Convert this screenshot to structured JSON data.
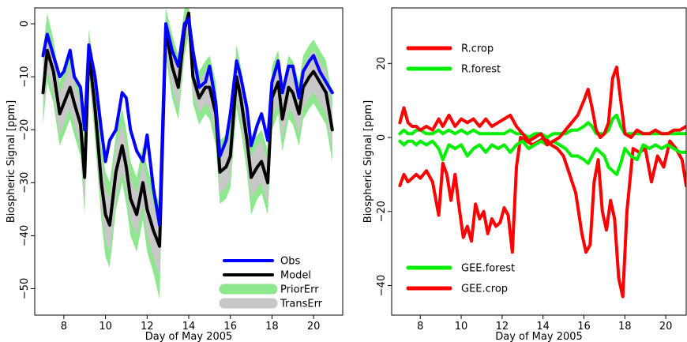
{
  "chart_data": [
    {
      "type": "line",
      "xlabel": "Day of May 2005",
      "ylabel": "Biospheric Signal [ppm]",
      "xlim": [
        6.6,
        21.4
      ],
      "ylim": [
        -55,
        3
      ],
      "xticks": [
        8,
        10,
        12,
        14,
        16,
        18,
        20
      ],
      "yticks": [
        0,
        -10,
        -20,
        -30,
        -40,
        -50
      ],
      "legend_position": "bottom-right",
      "series": [
        {
          "name": "Obs",
          "color": "#0000ff",
          "kind": "line",
          "x": [
            7.0,
            7.2,
            7.5,
            7.8,
            8.0,
            8.3,
            8.5,
            8.8,
            9.0,
            9.2,
            9.5,
            9.8,
            10.0,
            10.2,
            10.5,
            10.8,
            11.0,
            11.2,
            11.5,
            11.8,
            12.0,
            12.3,
            12.6,
            12.9,
            13.2,
            13.5,
            13.8,
            14.0,
            14.2,
            14.5,
            14.8,
            15.0,
            15.3,
            15.5,
            15.8,
            16.0,
            16.3,
            16.5,
            16.8,
            17.0,
            17.3,
            17.5,
            17.8,
            18.0,
            18.3,
            18.5,
            18.8,
            19.0,
            19.3,
            19.5,
            19.8,
            20.0,
            20.3,
            20.6,
            20.9
          ],
          "values": [
            -6,
            -2,
            -6,
            -10,
            -9,
            -5,
            -10,
            -12,
            -20,
            -4,
            -10,
            -20,
            -26,
            -22,
            -20,
            -13,
            -14,
            -20,
            -24,
            -26,
            -21,
            -31,
            -38,
            0,
            -5,
            -8,
            0,
            1,
            -5,
            -12,
            -11,
            -8,
            -15,
            -25,
            -22,
            -17,
            -7,
            -10,
            -16,
            -23,
            -19,
            -17,
            -22,
            -11,
            -7,
            -13,
            -8,
            -8,
            -14,
            -9,
            -7,
            -6,
            -9,
            -11,
            -13
          ]
        },
        {
          "name": "Model",
          "color": "#000000",
          "kind": "line",
          "x": [
            7.0,
            7.2,
            7.5,
            7.8,
            8.0,
            8.3,
            8.5,
            8.8,
            9.0,
            9.2,
            9.5,
            9.8,
            10.0,
            10.2,
            10.5,
            10.8,
            11.0,
            11.2,
            11.5,
            11.8,
            12.0,
            12.3,
            12.6,
            12.9,
            13.2,
            13.5,
            13.8,
            14.0,
            14.2,
            14.5,
            14.8,
            15.0,
            15.3,
            15.5,
            15.8,
            16.0,
            16.3,
            16.5,
            16.8,
            17.0,
            17.3,
            17.5,
            17.8,
            18.0,
            18.3,
            18.5,
            18.8,
            19.0,
            19.3,
            19.5,
            19.8,
            20.0,
            20.3,
            20.6,
            20.9
          ],
          "values": [
            -13,
            -5,
            -9,
            -17,
            -15,
            -12,
            -15,
            -19,
            -29,
            -5,
            -16,
            -30,
            -36,
            -38,
            -28,
            -23,
            -27,
            -33,
            -36,
            -30,
            -35,
            -39,
            -42,
            -1,
            -8,
            -12,
            -1,
            2,
            -10,
            -14,
            -12,
            -12,
            -17,
            -28,
            -27,
            -25,
            -10,
            -14,
            -22,
            -29,
            -27,
            -26,
            -30,
            -14,
            -11,
            -18,
            -12,
            -13,
            -17,
            -12,
            -10,
            -9,
            -11,
            -13,
            -20
          ]
        },
        {
          "name": "PriorErr",
          "color": "#8de88d",
          "kind": "band",
          "x": [
            7.0,
            7.2,
            7.5,
            7.8,
            8.0,
            8.3,
            8.5,
            8.8,
            9.0,
            9.2,
            9.5,
            9.8,
            10.0,
            10.2,
            10.5,
            10.8,
            11.0,
            11.2,
            11.5,
            11.8,
            12.0,
            12.3,
            12.6,
            12.9,
            13.2,
            13.5,
            13.8,
            14.0,
            14.2,
            14.5,
            14.8,
            15.0,
            15.3,
            15.5,
            15.8,
            16.0,
            16.3,
            16.5,
            16.8,
            17.0,
            17.3,
            17.5,
            17.8,
            18.0,
            18.3,
            18.5,
            18.8,
            19.0,
            19.3,
            19.5,
            19.8,
            20.0,
            20.3,
            20.6,
            20.9
          ],
          "upper": [
            -5,
            2,
            -3,
            -11,
            -9,
            -6,
            -9,
            -13,
            -22,
            -1,
            -10,
            -23,
            -28,
            -30,
            -21,
            -16,
            -20,
            -26,
            -29,
            -23,
            -27,
            -31,
            -34,
            3,
            -2,
            -6,
            3,
            4,
            -5,
            -9,
            -7,
            -6,
            -11,
            -22,
            -21,
            -19,
            -4,
            -8,
            -16,
            -22,
            -21,
            -20,
            -24,
            -8,
            -5,
            -12,
            -6,
            -7,
            -11,
            -6,
            -4,
            -3,
            -5,
            -7,
            -14
          ],
          "lower": [
            -19,
            -11,
            -15,
            -23,
            -21,
            -18,
            -21,
            -25,
            -36,
            -9,
            -22,
            -37,
            -44,
            -46,
            -35,
            -30,
            -34,
            -40,
            -43,
            -37,
            -43,
            -47,
            -52,
            -6,
            -14,
            -18,
            -6,
            -2,
            -15,
            -19,
            -17,
            -18,
            -23,
            -34,
            -33,
            -31,
            -16,
            -20,
            -28,
            -36,
            -33,
            -32,
            -36,
            -20,
            -17,
            -24,
            -18,
            -19,
            -23,
            -18,
            -16,
            -15,
            -17,
            -19,
            -26
          ]
        },
        {
          "name": "TransErr",
          "color": "#c8c8c8",
          "kind": "band",
          "x": [
            7.0,
            7.2,
            7.5,
            7.8,
            8.0,
            8.3,
            8.5,
            8.8,
            9.0,
            9.2,
            9.5,
            9.8,
            10.0,
            10.2,
            10.5,
            10.8,
            11.0,
            11.2,
            11.5,
            11.8,
            12.0,
            12.3,
            12.6,
            12.9,
            13.2,
            13.5,
            13.8,
            14.0,
            14.2,
            14.5,
            14.8,
            15.0,
            15.3,
            15.5,
            15.8,
            16.0,
            16.3,
            16.5,
            16.8,
            17.0,
            17.3,
            17.5,
            17.8,
            18.0,
            18.3,
            18.5,
            18.8,
            19.0,
            19.3,
            19.5,
            19.8,
            20.0,
            20.3,
            20.6,
            20.9
          ],
          "upper": [
            -8,
            -1,
            -5,
            -13,
            -11,
            -8,
            -11,
            -15,
            -24,
            -2,
            -12,
            -25,
            -31,
            -33,
            -23,
            -19,
            -23,
            -29,
            -32,
            -26,
            -30,
            -34,
            -38,
            1,
            -4,
            -8,
            1,
            3,
            -7,
            -11,
            -9,
            -8,
            -13,
            -24,
            -23,
            -21,
            -6,
            -10,
            -18,
            -25,
            -23,
            -22,
            -26,
            -10,
            -7,
            -14,
            -8,
            -9,
            -13,
            -8,
            -6,
            -5,
            -7,
            -9,
            -16
          ],
          "lower": [
            -17,
            -9,
            -13,
            -21,
            -19,
            -16,
            -19,
            -23,
            -34,
            -8,
            -20,
            -35,
            -41,
            -43,
            -33,
            -28,
            -31,
            -37,
            -40,
            -34,
            -40,
            -44,
            -48,
            -4,
            -12,
            -16,
            -4,
            -1,
            -13,
            -17,
            -15,
            -16,
            -21,
            -32,
            -31,
            -29,
            -14,
            -18,
            -26,
            -33,
            -31,
            -30,
            -34,
            -18,
            -15,
            -22,
            -16,
            -17,
            -21,
            -16,
            -14,
            -13,
            -15,
            -17,
            -24
          ]
        }
      ]
    },
    {
      "type": "line",
      "xlabel": "Day of May 2005",
      "ylabel": "Biospheric Signal [ppm]",
      "xlim": [
        6.6,
        21.0
      ],
      "ylim": [
        -48,
        35
      ],
      "xticks": [
        8,
        10,
        12,
        14,
        16,
        18,
        20
      ],
      "yticks": [
        20,
        0,
        -20,
        -40
      ],
      "legend_position": "top-left and bottom-left",
      "series": [
        {
          "name": "R.crop",
          "color": "#ff0000",
          "legend_group": "top",
          "x": [
            7.0,
            7.2,
            7.4,
            7.6,
            7.8,
            8.0,
            8.3,
            8.6,
            8.9,
            9.1,
            9.4,
            9.7,
            10.0,
            10.3,
            10.6,
            10.9,
            11.2,
            11.5,
            11.8,
            12.1,
            12.4,
            12.7,
            13.0,
            13.3,
            13.6,
            13.9,
            14.2,
            14.5,
            14.8,
            15.1,
            15.4,
            15.7,
            16.0,
            16.2,
            16.4,
            16.6,
            16.8,
            17.0,
            17.2,
            17.4,
            17.6,
            17.8,
            18.0,
            18.3,
            18.6,
            18.9,
            19.2,
            19.5,
            19.8,
            20.1,
            20.4,
            20.7,
            21.0
          ],
          "values": [
            4,
            8,
            4,
            3,
            3,
            2,
            3,
            2,
            5,
            3,
            6,
            3,
            5,
            4,
            5,
            3,
            5,
            3,
            4,
            5,
            6,
            3,
            1,
            -1,
            0,
            1,
            -2,
            -1,
            0,
            2,
            4,
            6,
            10,
            13,
            8,
            2,
            0,
            1,
            4,
            16,
            19,
            10,
            1,
            0,
            2,
            1,
            1,
            2,
            1,
            1,
            2,
            2,
            3
          ]
        },
        {
          "name": "R.forest",
          "color": "#00ee00",
          "legend_group": "top",
          "x": [
            7.0,
            7.2,
            7.4,
            7.6,
            7.8,
            8.0,
            8.3,
            8.6,
            8.9,
            9.1,
            9.4,
            9.7,
            10.0,
            10.3,
            10.6,
            10.9,
            11.2,
            11.5,
            11.8,
            12.1,
            12.4,
            12.7,
            13.0,
            13.3,
            13.6,
            13.9,
            14.2,
            14.5,
            14.8,
            15.1,
            15.4,
            15.7,
            16.0,
            16.2,
            16.4,
            16.6,
            16.8,
            17.0,
            17.2,
            17.4,
            17.6,
            17.8,
            18.0,
            18.3,
            18.6,
            18.9,
            19.2,
            19.5,
            19.8,
            20.1,
            20.4,
            20.7,
            21.0
          ],
          "values": [
            1,
            2,
            1,
            1,
            2,
            2,
            1,
            1,
            2,
            1,
            2,
            1,
            2,
            1,
            2,
            1,
            1,
            1,
            1,
            1,
            2,
            1,
            1,
            0,
            1,
            1,
            0,
            1,
            1,
            1,
            2,
            2,
            3,
            4,
            3,
            1,
            1,
            1,
            2,
            5,
            6,
            3,
            1,
            1,
            1,
            1,
            1,
            1,
            1,
            1,
            1,
            1,
            1
          ]
        },
        {
          "name": "GEE.forest",
          "color": "#00ee00",
          "legend_group": "bottom",
          "x": [
            7.0,
            7.2,
            7.4,
            7.6,
            7.8,
            8.0,
            8.3,
            8.6,
            8.9,
            9.1,
            9.4,
            9.7,
            10.0,
            10.3,
            10.6,
            10.9,
            11.2,
            11.5,
            11.8,
            12.1,
            12.4,
            12.7,
            13.0,
            13.3,
            13.6,
            13.9,
            14.2,
            14.5,
            14.8,
            15.1,
            15.4,
            15.7,
            16.0,
            16.2,
            16.4,
            16.6,
            16.8,
            17.0,
            17.2,
            17.4,
            17.6,
            17.8,
            18.0,
            18.3,
            18.6,
            18.9,
            19.2,
            19.5,
            19.8,
            20.1,
            20.4,
            20.7,
            21.0
          ],
          "values": [
            -1,
            -2,
            -1,
            -1,
            -2,
            -1,
            -2,
            -1,
            -3,
            -6,
            -2,
            -3,
            -2,
            -5,
            -3,
            -2,
            -4,
            -2,
            -3,
            -2,
            -4,
            -2,
            -1,
            -3,
            -2,
            -1,
            -2,
            -1,
            -2,
            -3,
            -5,
            -5,
            -6,
            -7,
            -5,
            -3,
            -4,
            -5,
            -8,
            -9,
            -10,
            -7,
            -3,
            -5,
            -6,
            -2,
            -3,
            -2,
            -3,
            -2,
            -3,
            -4,
            -4
          ]
        },
        {
          "name": "GEE.crop",
          "color": "#ff0000",
          "legend_group": "bottom",
          "x": [
            7.0,
            7.2,
            7.4,
            7.6,
            7.8,
            8.0,
            8.3,
            8.6,
            8.9,
            9.1,
            9.3,
            9.5,
            9.7,
            9.9,
            10.1,
            10.3,
            10.5,
            10.7,
            10.9,
            11.1,
            11.3,
            11.5,
            11.7,
            11.9,
            12.1,
            12.3,
            12.5,
            12.7,
            12.9,
            13.2,
            13.5,
            13.8,
            14.1,
            14.4,
            14.7,
            15.0,
            15.3,
            15.6,
            15.9,
            16.1,
            16.3,
            16.5,
            16.7,
            16.9,
            17.1,
            17.3,
            17.5,
            17.7,
            17.9,
            18.1,
            18.4,
            18.7,
            19.0,
            19.3,
            19.6,
            19.9,
            20.2,
            20.5,
            20.8,
            21.0
          ],
          "values": [
            -13,
            -10,
            -12,
            -11,
            -10,
            -11,
            -9,
            -12,
            -21,
            -7,
            -10,
            -17,
            -10,
            -19,
            -27,
            -24,
            -28,
            -18,
            -22,
            -20,
            -26,
            -22,
            -24,
            -23,
            -19,
            -21,
            -31,
            -8,
            0,
            -1,
            -2,
            -1,
            0,
            -2,
            -3,
            -5,
            -10,
            -15,
            -26,
            -31,
            -29,
            -12,
            -6,
            -20,
            -25,
            -17,
            -22,
            -38,
            -43,
            -20,
            -3,
            -4,
            -3,
            -12,
            -5,
            -8,
            -1,
            -3,
            -6,
            -13
          ]
        }
      ]
    }
  ]
}
